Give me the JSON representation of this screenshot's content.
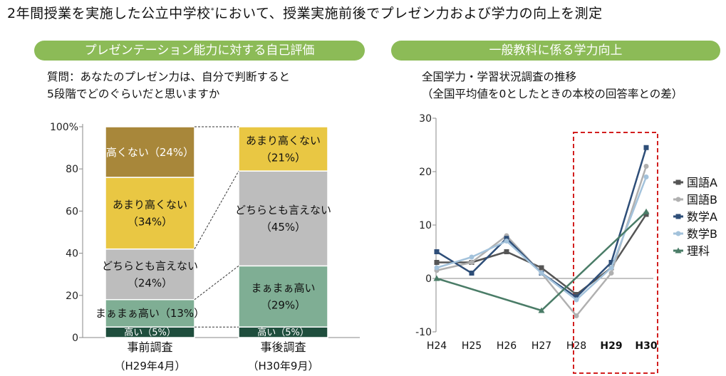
{
  "header": {
    "title": "2年間授業を実施した公立中学校",
    "title_mark": "*",
    "title_rest": "において、授業実施前後でプレゼン力および学力の向上を測定"
  },
  "left_panel": {
    "heading": "プレゼンテーション能力に対する自己評価",
    "question_line1": "質問：あなたのプレゼン力は、自分で判断すると",
    "question_line2": "5段階でどのぐらいだと思いますか"
  },
  "right_panel": {
    "heading": "一般教科に係る学力向上",
    "subtitle_line1": "全国学力・学習状況調査の推移",
    "subtitle_line2": "（全国平均値を0としたときの本校の回答率との差）"
  },
  "chart_data": [
    {
      "type": "bar",
      "stacked": true,
      "ylim": [
        0,
        100
      ],
      "yticks": [
        "0",
        "20",
        "40",
        "60",
        "80",
        "100%"
      ],
      "categories": [
        {
          "label": "事前調査",
          "sublabel": "（H29年4月）"
        },
        {
          "label": "事後調査",
          "sublabel": "（H30年9月）"
        }
      ],
      "series": [
        {
          "name": "高い",
          "color": "#1f4e3d",
          "text_color": "#ffffff",
          "values": [
            5,
            5
          ],
          "labels": [
            "高い（5%）",
            "高い（5%）"
          ]
        },
        {
          "name": "まぁまぁ高い",
          "color": "#7fae94",
          "text_color": "#111111",
          "values": [
            13,
            29
          ],
          "labels": [
            "まぁまぁ高い（13%）",
            "まぁまぁ高い|（29%）"
          ]
        },
        {
          "name": "どちらとも言えない",
          "color": "#bdbdbd",
          "text_color": "#111111",
          "values": [
            24,
            45
          ],
          "labels": [
            "どちらとも言えない|（24%）",
            "どちらとも言えない|（45%）"
          ]
        },
        {
          "name": "あまり高くない",
          "color": "#e9c743",
          "text_color": "#111111",
          "values": [
            34,
            21
          ],
          "labels": [
            "あまり高くない|（34%）",
            "あまり高くない|（21%）"
          ]
        },
        {
          "name": "高くない",
          "color": "#a8873a",
          "text_color": "#ffffff",
          "values": [
            24,
            0
          ],
          "labels": [
            "高くない（24%）",
            ""
          ]
        }
      ]
    },
    {
      "type": "line",
      "x": [
        "H24",
        "H25",
        "H26",
        "H27",
        "H28",
        "H29",
        "H30"
      ],
      "bold_x": [
        "H29",
        "H30"
      ],
      "ylim": [
        -10,
        30
      ],
      "yticks": [
        "-10",
        "0",
        "10",
        "20",
        "30"
      ],
      "highlight_range": [
        "H28",
        "H30"
      ],
      "series": [
        {
          "name": "国語A",
          "color": "#555555",
          "marker": "square",
          "values": [
            3,
            3,
            5,
            2,
            -3,
            2,
            12
          ]
        },
        {
          "name": "国語B",
          "color": "#b0b0b0",
          "marker": "circle",
          "values": [
            1.5,
            3,
            8,
            1,
            -7,
            1,
            21
          ]
        },
        {
          "name": "数学A",
          "color": "#2e4e78",
          "marker": "square",
          "values": [
            5,
            1,
            7.5,
            1,
            -3.5,
            3,
            24.5
          ]
        },
        {
          "name": "数学B",
          "color": "#a3c2db",
          "marker": "circle",
          "values": [
            2,
            4,
            7,
            1,
            -4,
            2,
            19
          ]
        },
        {
          "name": "理科",
          "color": "#4a7c67",
          "marker": "triangle",
          "values": [
            0,
            null,
            null,
            -6,
            null,
            null,
            12.5
          ]
        }
      ]
    }
  ]
}
